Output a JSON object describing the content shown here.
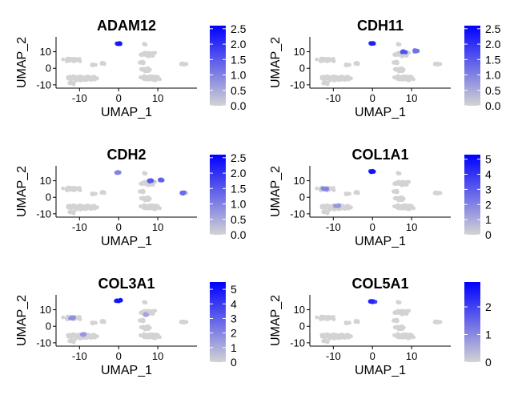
{
  "chart_data": [
    {
      "type": "scatter",
      "title": "ADAM12",
      "xlabel": "UMAP_1",
      "ylabel": "UMAP_2",
      "xticks": [
        -10,
        0,
        10
      ],
      "yticks": [
        -10,
        0,
        10
      ],
      "xlim": [
        -16,
        20
      ],
      "ylim": [
        -12,
        19
      ],
      "color_low": "#d3d3d3",
      "color_high": "#0000ff",
      "legend": {
        "min": 0,
        "max": 2.6,
        "ticks": [
          "0.0",
          "0.5",
          "1.0",
          "1.5",
          "2.0",
          "2.5"
        ],
        "tick_values": [
          0,
          0.5,
          1,
          1.5,
          2,
          2.5
        ]
      },
      "hotspots": [
        {
          "x": 0,
          "y": 15,
          "v": 2.3
        }
      ]
    },
    {
      "type": "scatter",
      "title": "CDH11",
      "xlabel": "UMAP_1",
      "ylabel": "UMAP_2",
      "xticks": [
        -10,
        0,
        10
      ],
      "yticks": [
        -10,
        0,
        10
      ],
      "xlim": [
        -16,
        20
      ],
      "ylim": [
        -12,
        19
      ],
      "color_low": "#d3d3d3",
      "color_high": "#0000ff",
      "legend": {
        "min": 0,
        "max": 2.6,
        "ticks": [
          "0.0",
          "0.5",
          "1.0",
          "1.5",
          "2.0",
          "2.5"
        ],
        "tick_values": [
          0,
          0.5,
          1,
          1.5,
          2,
          2.5
        ]
      },
      "hotspots": [
        {
          "x": 0,
          "y": 15,
          "v": 2.2
        },
        {
          "x": 8,
          "y": 10,
          "v": 1.6
        },
        {
          "x": 11,
          "y": 10.5,
          "v": 1.2
        }
      ]
    },
    {
      "type": "scatter",
      "title": "CDH2",
      "xlabel": "UMAP_1",
      "ylabel": "UMAP_2",
      "xticks": [
        -10,
        0,
        10
      ],
      "yticks": [
        -10,
        0,
        10
      ],
      "xlim": [
        -16,
        20
      ],
      "ylim": [
        -12,
        19
      ],
      "color_low": "#d3d3d3",
      "color_high": "#0000ff",
      "legend": {
        "min": 0,
        "max": 2.6,
        "ticks": [
          "0.0",
          "0.5",
          "1.0",
          "1.5",
          "2.0",
          "2.5"
        ],
        "tick_values": [
          0,
          0.5,
          1,
          1.5,
          2,
          2.5
        ]
      },
      "hotspots": [
        {
          "x": 0,
          "y": 15,
          "v": 1.0
        },
        {
          "x": 8,
          "y": 10,
          "v": 1.5
        },
        {
          "x": 11,
          "y": 10.5,
          "v": 1.4
        },
        {
          "x": 16.5,
          "y": 2.5,
          "v": 1.3
        }
      ]
    },
    {
      "type": "scatter",
      "title": "COL1A1",
      "xlabel": "UMAP_1",
      "ylabel": "UMAP_2",
      "xticks": [
        -10,
        0,
        10
      ],
      "yticks": [
        -10,
        0,
        10
      ],
      "xlim": [
        -16,
        20
      ],
      "ylim": [
        -12,
        19
      ],
      "color_low": "#d3d3d3",
      "color_high": "#0000ff",
      "legend": {
        "min": 0,
        "max": 5.3,
        "ticks": [
          "0",
          "1",
          "2",
          "3",
          "4",
          "5"
        ],
        "tick_values": [
          0,
          1,
          2,
          3,
          4,
          5
        ]
      },
      "hotspots": [
        {
          "x": 0,
          "y": 15.5,
          "v": 4.8
        },
        {
          "x": -12,
          "y": 5,
          "v": 2.0
        },
        {
          "x": -9,
          "y": -5,
          "v": 1.5
        }
      ]
    },
    {
      "type": "scatter",
      "title": "COL3A1",
      "xlabel": "UMAP_1",
      "ylabel": "UMAP_2",
      "xticks": [
        -10,
        0,
        10
      ],
      "yticks": [
        -10,
        0,
        10
      ],
      "xlim": [
        -16,
        20
      ],
      "ylim": [
        -12,
        19
      ],
      "color_low": "#d3d3d3",
      "color_high": "#0000ff",
      "legend": {
        "min": 0,
        "max": 5.5,
        "ticks": [
          "0",
          "1",
          "2",
          "3",
          "4",
          "5"
        ],
        "tick_values": [
          0,
          1,
          2,
          3,
          4,
          5
        ]
      },
      "hotspots": [
        {
          "x": 0,
          "y": 15.5,
          "v": 5.0
        },
        {
          "x": -12,
          "y": 5,
          "v": 1.8
        },
        {
          "x": -9,
          "y": -5,
          "v": 1.6
        },
        {
          "x": 7,
          "y": 7,
          "v": 1.2
        }
      ]
    },
    {
      "type": "scatter",
      "title": "COL5A1",
      "xlabel": "UMAP_1",
      "ylabel": "UMAP_2",
      "xticks": [
        -10,
        0,
        10
      ],
      "yticks": [
        -10,
        0,
        10
      ],
      "xlim": [
        -16,
        20
      ],
      "ylim": [
        -12,
        19
      ],
      "color_low": "#d3d3d3",
      "color_high": "#0000ff",
      "legend": {
        "min": 0,
        "max": 2.9,
        "ticks": [
          "0",
          "1",
          "2"
        ],
        "tick_values": [
          0,
          1,
          2
        ]
      },
      "hotspots": [
        {
          "x": 0,
          "y": 15,
          "v": 2.4
        }
      ]
    }
  ]
}
